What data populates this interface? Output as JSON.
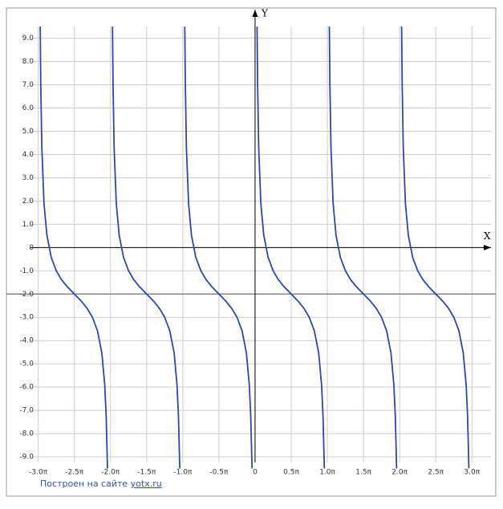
{
  "chart_data": {
    "type": "line",
    "x_label": "X",
    "y_label": "Y",
    "footer": "Построен на сайте",
    "footer_link": "yotx.ru",
    "xlim": [
      -3.44,
      3.33
    ],
    "ylim": [
      -10.0,
      10.3
    ],
    "xticks": [
      {
        "value": -3,
        "label": "-3.0π"
      },
      {
        "value": -2.5,
        "label": "-2.5π"
      },
      {
        "value": -2,
        "label": "-2.0π"
      },
      {
        "value": -1.5,
        "label": "-1.5π"
      },
      {
        "value": -1,
        "label": "-1.0π"
      },
      {
        "value": -0.5,
        "label": "-0.5π"
      },
      0,
      {
        "value": 0.5,
        "label": "0.5π"
      },
      {
        "value": 1,
        "label": "1.0π"
      },
      {
        "value": 1.5,
        "label": "1.5π"
      },
      {
        "value": 2,
        "label": "2.0π"
      },
      {
        "value": 2.5,
        "label": "2.5π"
      },
      {
        "value": 3,
        "label": "3.0π"
      }
    ],
    "yticks": [
      {
        "value": 9,
        "label": "9.0"
      },
      {
        "value": 8,
        "label": "8.0"
      },
      {
        "value": 7,
        "label": "7.0"
      },
      {
        "value": 6,
        "label": "6.0"
      },
      {
        "value": 5,
        "label": "5.0"
      },
      {
        "value": 4,
        "label": "4.0"
      },
      {
        "value": 3,
        "label": "3.0"
      },
      {
        "value": 2,
        "label": "2.0"
      },
      {
        "value": 1,
        "label": "1.0"
      },
      0,
      {
        "value": -1,
        "label": "-1.0"
      },
      {
        "value": -2,
        "label": "-2.0"
      },
      {
        "value": -3,
        "label": "-3.0"
      },
      {
        "value": -4,
        "label": "-4.0"
      },
      {
        "value": -5,
        "label": "-5.0"
      },
      {
        "value": -6,
        "label": "-6.0"
      },
      {
        "value": -7,
        "label": "-7.0"
      },
      {
        "value": -8,
        "label": "-8.0"
      },
      {
        "value": -9,
        "label": "-9.0"
      }
    ],
    "grid": true,
    "reference_line": -2,
    "series": [
      {
        "color": "#2a48b0",
        "x": [
          -2.9724,
          -2.965,
          -2.95,
          -2.92,
          -2.88,
          -2.82,
          -2.75,
          -2.68,
          -2.6,
          -2.5,
          -2.4,
          -2.32,
          -2.25,
          -2.18,
          -2.12,
          -2.08,
          -2.06,
          -2.042
        ],
        "values": [
          9.5,
          7.06,
          4.31,
          1.89,
          0.53,
          -0.42,
          -1,
          -1.37,
          -1.68,
          -2,
          -2.32,
          -2.63,
          -3,
          -3.58,
          -4.53,
          -5.9,
          -7.24,
          -9.5
        ]
      },
      {
        "color": "#2a48b0",
        "x": [
          -1.9724,
          -1.965,
          -1.95,
          -1.92,
          -1.88,
          -1.82,
          -1.75,
          -1.68,
          -1.6,
          -1.5,
          -1.4,
          -1.32,
          -1.25,
          -1.18,
          -1.12,
          -1.08,
          -1.06,
          -1.042
        ],
        "values": [
          9.5,
          7.06,
          4.31,
          1.89,
          0.53,
          -0.42,
          -1,
          -1.37,
          -1.68,
          -2,
          -2.32,
          -2.63,
          -3,
          -3.58,
          -4.53,
          -5.9,
          -7.24,
          -9.5
        ]
      },
      {
        "color": "#2a48b0",
        "x": [
          -0.9724,
          -0.965,
          -0.95,
          -0.92,
          -0.88,
          -0.82,
          -0.75,
          -0.68,
          -0.6,
          -0.5,
          -0.4,
          -0.32,
          -0.25,
          -0.18,
          -0.12,
          -0.08,
          -0.06,
          -0.042
        ],
        "values": [
          9.5,
          7.06,
          4.31,
          1.89,
          0.53,
          -0.42,
          -1,
          -1.37,
          -1.68,
          -2,
          -2.32,
          -2.63,
          -3,
          -3.58,
          -4.53,
          -5.9,
          -7.24,
          -9.5
        ]
      },
      {
        "color": "#2a48b0",
        "x": [
          0.0276,
          0.035,
          0.05,
          0.08,
          0.12,
          0.18,
          0.25,
          0.32,
          0.4,
          0.5,
          0.6,
          0.68,
          0.75,
          0.82,
          0.88,
          0.92,
          0.94,
          0.958
        ],
        "values": [
          9.5,
          7.06,
          4.31,
          1.89,
          0.53,
          -0.42,
          -1,
          -1.37,
          -1.68,
          -2,
          -2.32,
          -2.63,
          -3,
          -3.58,
          -4.53,
          -5.9,
          -7.24,
          -9.5
        ]
      },
      {
        "color": "#2a48b0",
        "x": [
          1.0276,
          1.035,
          1.05,
          1.08,
          1.12,
          1.18,
          1.25,
          1.32,
          1.4,
          1.5,
          1.6,
          1.68,
          1.75,
          1.82,
          1.88,
          1.92,
          1.94,
          1.958
        ],
        "values": [
          9.5,
          7.06,
          4.31,
          1.89,
          0.53,
          -0.42,
          -1,
          -1.37,
          -1.68,
          -2,
          -2.32,
          -2.63,
          -3,
          -3.58,
          -4.53,
          -5.9,
          -7.24,
          -9.5
        ]
      },
      {
        "color": "#2a48b0",
        "x": [
          2.0276,
          2.035,
          2.05,
          2.08,
          2.12,
          2.18,
          2.25,
          2.32,
          2.4,
          2.5,
          2.6,
          2.68,
          2.75,
          2.82,
          2.88,
          2.92,
          2.94,
          2.958
        ],
        "values": [
          9.5,
          7.06,
          4.31,
          1.89,
          0.53,
          -0.42,
          -1,
          -1.37,
          -1.68,
          -2,
          -2.32,
          -2.63,
          -3,
          -3.58,
          -4.53,
          -5.9,
          -7.24,
          -9.5
        ]
      }
    ]
  }
}
